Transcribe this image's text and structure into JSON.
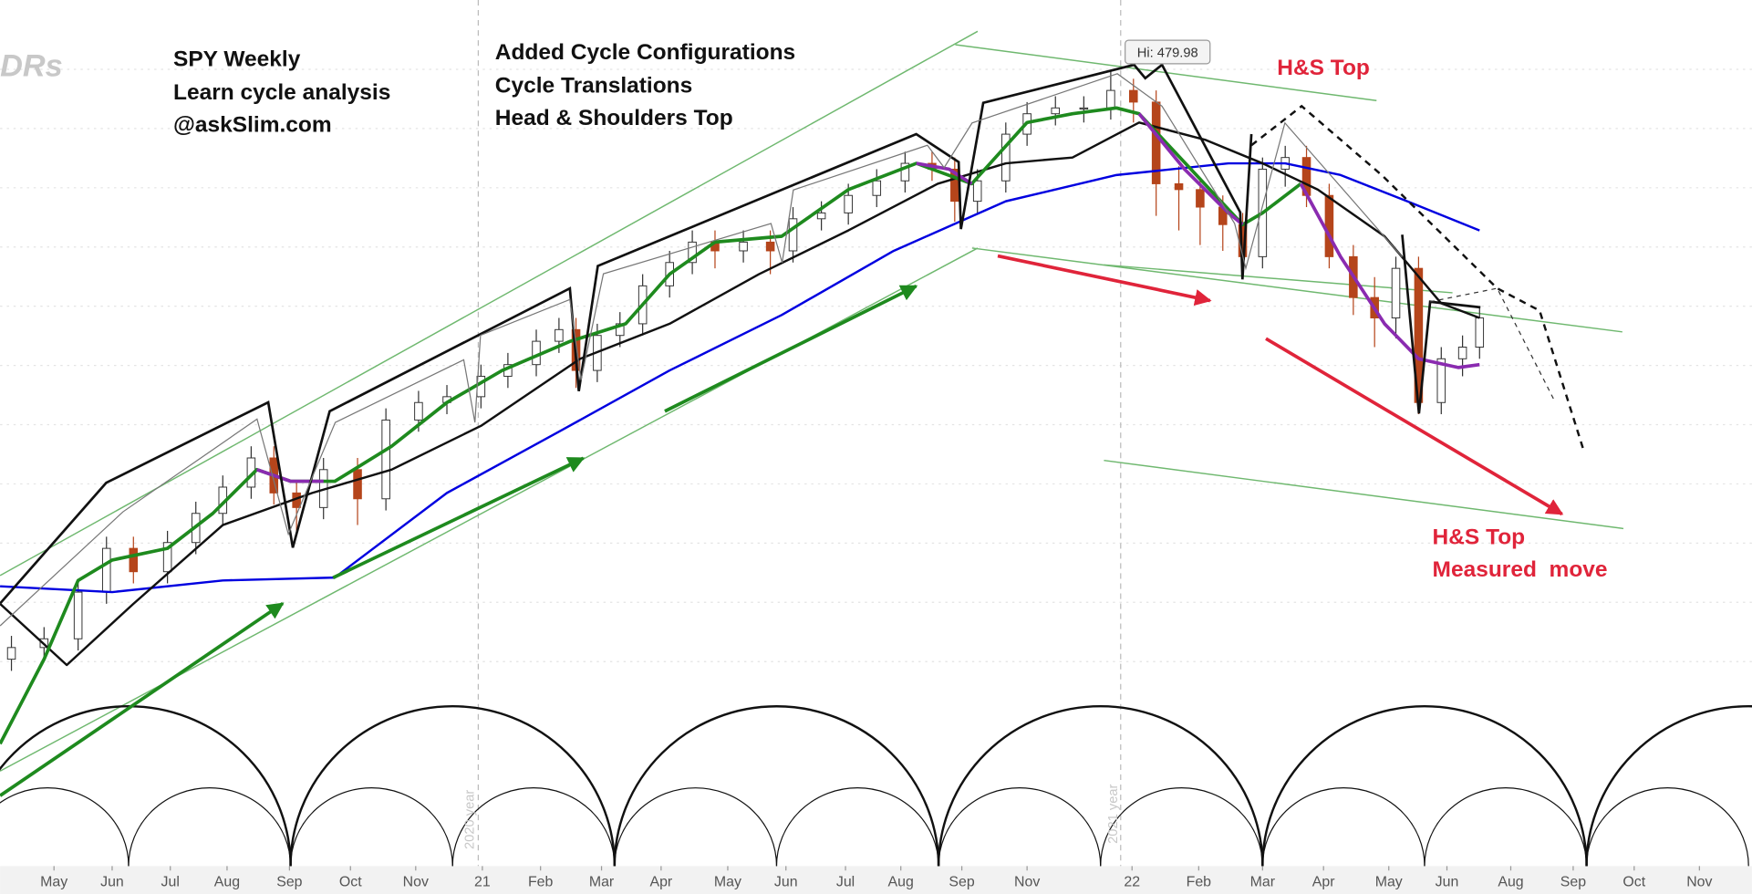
{
  "chart_data": {
    "type": "candlestick",
    "title": "SPY Weekly",
    "logo": "DRs",
    "annotations": [
      "Learn cycle analysis",
      "@askSlim.com",
      "Added Cycle Configurations",
      "Cycle Translations",
      "Head & Shoulders Top",
      "H&S Top",
      "H&S Top",
      "Measured  move",
      "Hi: 479.98",
      "2020 year",
      "2021 year"
    ],
    "xlim": [
      0,
      123.5
    ],
    "ylim": [
      209,
      504
    ],
    "xticks": [
      {
        "value": 3.8,
        "label": "May"
      },
      {
        "value": 7.9,
        "label": "Jun"
      },
      {
        "value": 12.0,
        "label": "Jul"
      },
      {
        "value": 16.0,
        "label": "Aug"
      },
      {
        "value": 20.4,
        "label": "Sep"
      },
      {
        "value": 24.7,
        "label": "Oct"
      },
      {
        "value": 29.3,
        "label": "Nov"
      },
      {
        "value": 34.0,
        "label": "21"
      },
      {
        "value": 38.1,
        "label": "Feb"
      },
      {
        "value": 42.4,
        "label": "Mar"
      },
      {
        "value": 46.6,
        "label": "Apr"
      },
      {
        "value": 51.3,
        "label": "May"
      },
      {
        "value": 55.4,
        "label": "Jun"
      },
      {
        "value": 59.6,
        "label": "Jul"
      },
      {
        "value": 63.5,
        "label": "Aug"
      },
      {
        "value": 67.8,
        "label": "Sep"
      },
      {
        "value": 72.4,
        "label": "Nov"
      },
      {
        "value": 79.8,
        "label": "22"
      },
      {
        "value": 84.5,
        "label": "Feb"
      },
      {
        "value": 89.0,
        "label": "Mar"
      },
      {
        "value": 93.3,
        "label": "Apr"
      },
      {
        "value": 97.9,
        "label": "May"
      },
      {
        "value": 102.0,
        "label": "Jun"
      },
      {
        "value": 106.5,
        "label": "Aug"
      },
      {
        "value": 110.9,
        "label": "Sep"
      },
      {
        "value": 115.2,
        "label": "Oct"
      },
      {
        "value": 119.8,
        "label": "Nov"
      }
    ],
    "x": [
      0.8,
      3.1,
      5.5,
      7.5,
      9.4,
      11.8,
      13.8,
      15.7,
      17.7,
      19.3,
      20.9,
      22.8,
      25.2,
      27.2,
      29.5,
      31.5,
      33.9,
      35.8,
      37.8,
      39.4,
      40.6,
      42.1,
      43.7,
      45.3,
      47.2,
      48.8,
      50.4,
      52.4,
      54.3,
      55.9,
      57.9,
      59.8,
      61.8,
      63.8,
      65.7,
      67.3,
      68.9,
      70.9,
      72.4,
      74.4,
      76.4,
      78.3,
      79.9,
      81.5,
      83.1,
      84.6,
      86.2,
      87.6,
      89.0,
      90.6,
      92.1,
      93.7,
      95.4,
      96.9,
      98.4,
      100.0,
      101.6,
      103.1,
      104.3
    ],
    "open": [
      278,
      282,
      285,
      301,
      316,
      308,
      318,
      328,
      337,
      347,
      335,
      330,
      343,
      333,
      360,
      366,
      368,
      375,
      379,
      387,
      391,
      377,
      389,
      393,
      406,
      414,
      421,
      418,
      421,
      418,
      429,
      431,
      437,
      442,
      448,
      446,
      435,
      442,
      458,
      465,
      467,
      467,
      473,
      469,
      441,
      439,
      433,
      427,
      416,
      446,
      450,
      437,
      416,
      402,
      395,
      412,
      366,
      381,
      385
    ],
    "high": [
      286,
      289,
      305,
      320,
      320,
      322,
      332,
      341,
      351,
      351,
      339,
      347,
      347,
      364,
      370,
      372,
      379,
      383,
      391,
      395,
      395,
      393,
      397,
      410,
      418,
      425,
      425,
      425,
      425,
      433,
      435,
      441,
      446,
      452,
      452,
      450,
      446,
      462,
      469,
      471,
      471,
      479.98,
      477,
      473,
      447,
      443,
      437,
      431,
      450,
      454,
      454,
      441,
      420,
      409,
      416,
      416,
      385,
      389,
      399
    ],
    "low": [
      274,
      278,
      281,
      297,
      304,
      304,
      314,
      324,
      333,
      331,
      322,
      326,
      324,
      329,
      356,
      362,
      364,
      371,
      375,
      383,
      371,
      373,
      385,
      389,
      402,
      410,
      412,
      414,
      410,
      414,
      425,
      427,
      433,
      438,
      442,
      428,
      431,
      438,
      454,
      461,
      462,
      463,
      462,
      430,
      425,
      420,
      418,
      410,
      412,
      440,
      433,
      412,
      396,
      385,
      388,
      362,
      362,
      375,
      381
    ],
    "close": [
      282,
      285,
      301,
      316,
      308,
      318,
      328,
      337,
      347,
      335,
      330,
      343,
      333,
      360,
      366,
      368,
      375,
      379,
      387,
      391,
      377,
      389,
      393,
      406,
      414,
      421,
      418,
      421,
      418,
      429,
      431,
      437,
      442,
      448,
      446,
      435,
      442,
      458,
      465,
      467,
      467,
      473,
      469,
      441,
      439,
      433,
      427,
      416,
      446,
      450,
      437,
      416,
      402,
      395,
      412,
      366,
      381,
      385,
      395
    ],
    "up_color": "#ffffff",
    "down_color": "#b5451b",
    "series": [
      {
        "color": "#0000e0",
        "x": [
          0,
          7.9,
          15.7,
          23.6,
          31.5,
          39.4,
          47.2,
          55.1,
          63.0,
          70.9,
          78.7,
          86.6,
          90.6,
          94.5,
          99.2,
          104.3
        ],
        "values": [
          303,
          301,
          305,
          306,
          335,
          356,
          377,
          396,
          418,
          435,
          444,
          448,
          448,
          444,
          435,
          425
        ]
      },
      {
        "color": "#111111",
        "x": [
          0,
          4.7,
          9.4,
          15.7,
          22.0,
          27.6,
          33.9,
          40.9,
          47.2,
          53.5,
          59.8,
          66.1,
          70.9,
          75.6,
          80.3,
          85.0,
          89.0,
          92.9,
          97.6,
          101.6,
          104.3
        ],
        "values": [
          297,
          276,
          297,
          324,
          335,
          343,
          358,
          381,
          393,
          410,
          425,
          441,
          448,
          450,
          462,
          456,
          448,
          439,
          423,
          400,
          395
        ]
      },
      {
        "color": "#1e8a1e",
        "x": [
          0,
          3.1,
          5.5,
          7.9,
          11.8,
          15.0,
          18.1,
          20.5,
          23.6,
          27.6,
          31.5,
          35.4,
          40.2,
          44.1,
          47.2,
          50.4,
          55.1,
          59.8,
          64.6,
          68.5,
          72.4,
          75.6,
          78.7,
          80.3,
          87.6,
          89.0,
          91.7
        ],
        "values": [
          249,
          278,
          305,
          312,
          316,
          328,
          343,
          339,
          339,
          351,
          366,
          377,
          387,
          393,
          410,
          421,
          423,
          439,
          448,
          441,
          462,
          465,
          467,
          465,
          427,
          431,
          441
        ]
      },
      {
        "color": "#8a2bb0",
        "x": [
          18.1,
          20.5,
          22.8,
          null,
          64.6,
          66.9,
          68.5,
          null,
          80.3,
          83.5,
          86.6,
          87.6,
          null,
          91.7,
          94.5,
          97.6,
          100.0,
          102.8,
          104.3
        ],
        "values": [
          343,
          339,
          339,
          null,
          448,
          446,
          441,
          null,
          465,
          446,
          431,
          427,
          null,
          441,
          416,
          393,
          381,
          378,
          379
        ]
      }
    ]
  }
}
